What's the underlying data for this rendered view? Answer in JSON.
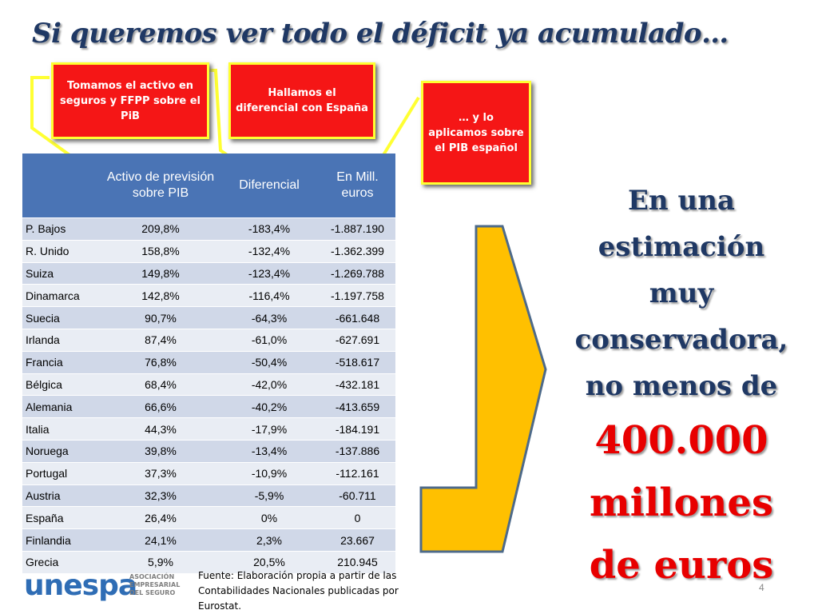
{
  "title": "Si queremos ver todo el déficit ya acumulado…",
  "callouts": {
    "left": "Tomamos el activo en seguros y FFPP sobre el PiB",
    "middle": "Hallamos el diferencial con España",
    "right": "… y lo aplicamos sobre el PIB español"
  },
  "table": {
    "headers": [
      "",
      "Activo de previsión sobre PIB",
      "Diferencial",
      "En Mill. euros"
    ],
    "rows": [
      [
        "P. Bajos",
        "209,8%",
        "-183,4%",
        "-1.887.190"
      ],
      [
        "R. Unido",
        "158,8%",
        "-132,4%",
        "-1.362.399"
      ],
      [
        "Suiza",
        "149,8%",
        "-123,4%",
        "-1.269.788"
      ],
      [
        "Dinamarca",
        "142,8%",
        "-116,4%",
        "-1.197.758"
      ],
      [
        "Suecia",
        "90,7%",
        "-64,3%",
        "-661.648"
      ],
      [
        "Irlanda",
        "87,4%",
        "-61,0%",
        "-627.691"
      ],
      [
        "Francia",
        "76,8%",
        "-50,4%",
        "-518.617"
      ],
      [
        "Bélgica",
        "68,4%",
        "-42,0%",
        "-432.181"
      ],
      [
        "Alemania",
        "66,6%",
        "-40,2%",
        "-413.659"
      ],
      [
        "Italia",
        "44,3%",
        "-17,9%",
        "-184.191"
      ],
      [
        "Noruega",
        "39,8%",
        "-13,4%",
        "-137.886"
      ],
      [
        "Portugal",
        "37,3%",
        "-10,9%",
        "-112.161"
      ],
      [
        "Austria",
        "32,3%",
        "-5,9%",
        "-60.711"
      ],
      [
        "España",
        "26,4%",
        "0%",
        "0"
      ],
      [
        "Finlandia",
        "24,1%",
        "2,3%",
        "23.667"
      ],
      [
        "Grecia",
        "5,9%",
        "20,5%",
        "210.945"
      ]
    ]
  },
  "conclusion": {
    "line1": "En una",
    "line2": "estimación",
    "line3": "muy",
    "line4": "conservadora,",
    "line5": "no menos de",
    "amount1": "400.000",
    "amount2": "millones",
    "amount3": "de euros"
  },
  "source": "Fuente: Elaboración propia a partir de las Contabilidades Nacionales publicadas por Eurostat.",
  "logo": {
    "word": "unespa",
    "sub1": "ASOCIACIÓN",
    "sub2": "EMPRESARIAL",
    "sub3": "DEL SEGURO"
  },
  "page_number": "4",
  "colors": {
    "title": "#1f3864",
    "callout_bg": "#f51616",
    "callout_border": "#ffff33",
    "arrow_fill": "#ffc000",
    "table_header": "#4a74b5",
    "amount": "#e80000"
  }
}
